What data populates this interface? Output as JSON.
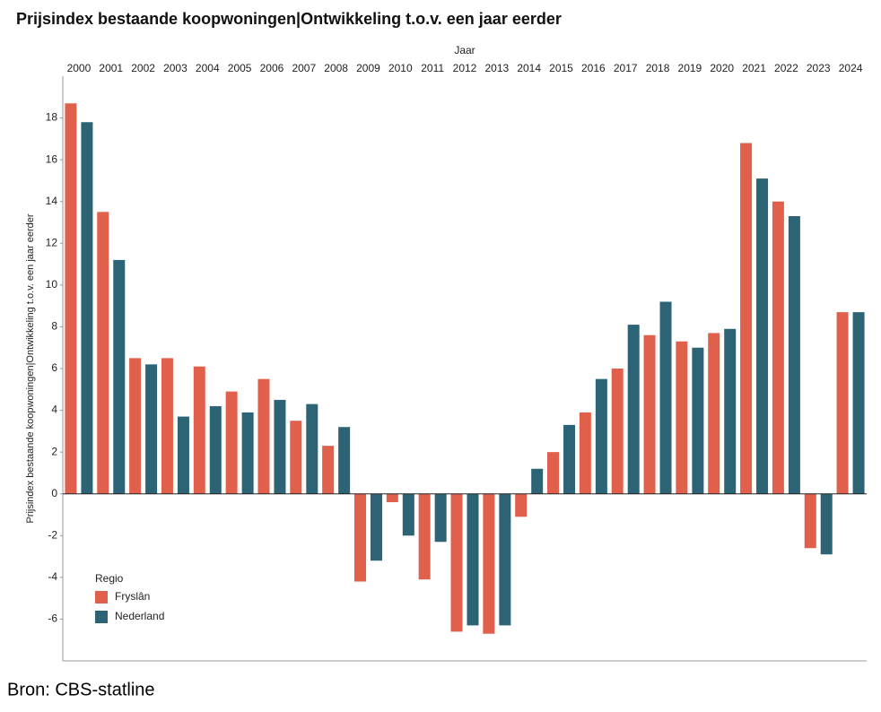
{
  "chart_data": {
    "type": "bar",
    "title": "Prijsindex bestaande koopwoningen|Ontwikkeling t.o.v. een jaar eerder",
    "x_label": "Jaar",
    "y_label": "Prijsindex bestaande koopwoningen|Ontwikkeling t.o.v. een jaar eerder",
    "categories": [
      "2000",
      "2001",
      "2002",
      "2003",
      "2004",
      "2005",
      "2006",
      "2007",
      "2008",
      "2009",
      "2010",
      "2011",
      "2012",
      "2013",
      "2014",
      "2015",
      "2016",
      "2017",
      "2018",
      "2019",
      "2020",
      "2021",
      "2022",
      "2023",
      "2024"
    ],
    "series": [
      {
        "name": "Fryslân",
        "color": "#e0604c",
        "values": [
          18.7,
          13.5,
          6.5,
          6.5,
          6.1,
          4.9,
          5.5,
          3.5,
          2.3,
          -4.2,
          -0.4,
          -4.1,
          -6.6,
          -6.7,
          -1.1,
          2.0,
          3.9,
          6.0,
          7.6,
          7.3,
          7.7,
          16.8,
          14.0,
          -2.6,
          8.7
        ]
      },
      {
        "name": "Nederland",
        "color": "#2c6475",
        "values": [
          17.8,
          11.2,
          6.2,
          3.7,
          4.2,
          3.9,
          4.5,
          4.3,
          3.2,
          -3.2,
          -2.0,
          -2.3,
          -6.3,
          -6.3,
          1.2,
          3.3,
          5.5,
          8.1,
          9.2,
          7.0,
          7.9,
          15.1,
          13.3,
          -2.9,
          8.7
        ]
      }
    ],
    "legend_title": "Regio",
    "legend_position": "lower left",
    "ylim": [
      -8,
      20
    ],
    "yticks": [
      -6,
      -4,
      -2,
      0,
      2,
      4,
      6,
      8,
      10,
      12,
      14,
      16,
      18
    ],
    "grid": false,
    "source": "Bron: CBS-statline"
  }
}
